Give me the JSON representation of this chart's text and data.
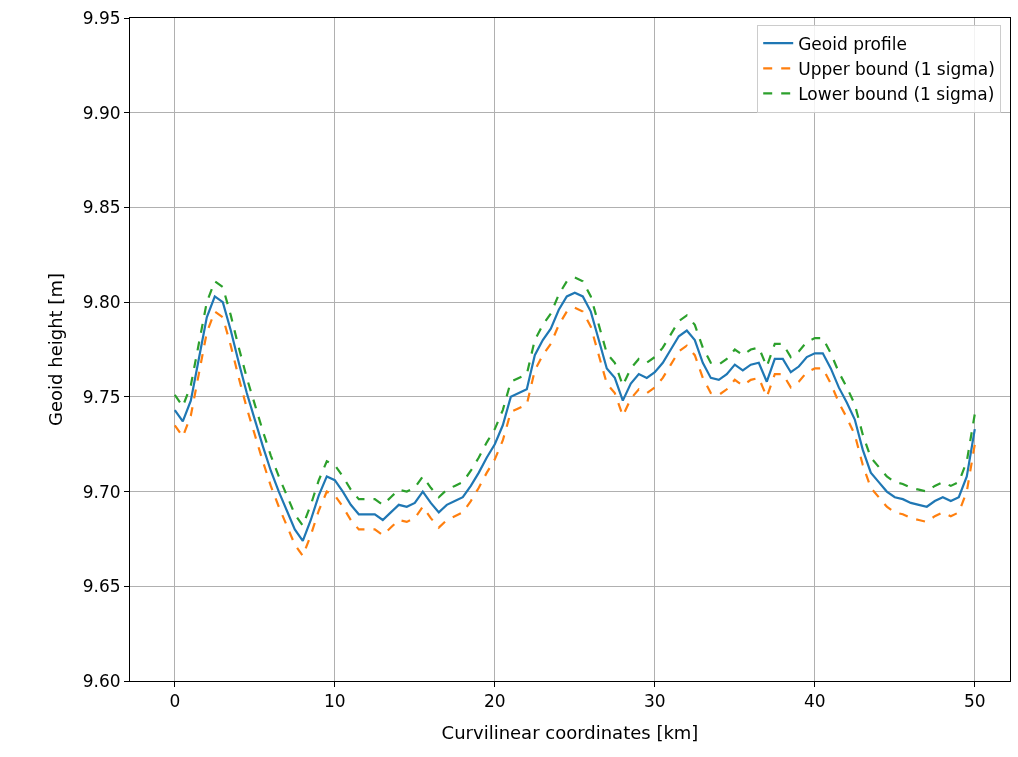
{
  "chart_data": {
    "type": "line",
    "xlabel": "Curvilinear coordinates [km]",
    "ylabel": "Geoid height [m]",
    "x": [
      0,
      0.5,
      1,
      1.5,
      2,
      2.5,
      3,
      3.5,
      4,
      4.5,
      5,
      5.5,
      6,
      6.5,
      7,
      7.5,
      8,
      8.5,
      9,
      9.5,
      10,
      10.5,
      11,
      11.5,
      12,
      12.5,
      13,
      13.5,
      14,
      14.5,
      15,
      15.5,
      16,
      16.5,
      17,
      17.5,
      18,
      18.5,
      19,
      19.5,
      20,
      20.5,
      21,
      21.5,
      22,
      22.5,
      23,
      23.5,
      24,
      24.5,
      25,
      25.5,
      26,
      26.5,
      27,
      27.5,
      28,
      28.5,
      29,
      29.5,
      30,
      30.5,
      31,
      31.5,
      32,
      32.5,
      33,
      33.5,
      34,
      34.5,
      35,
      35.5,
      36,
      36.5,
      37,
      37.5,
      38,
      38.5,
      39,
      39.5,
      40,
      40.5,
      41,
      41.5,
      42,
      42.5,
      43,
      43.5,
      44,
      44.5,
      45,
      45.5,
      46,
      46.5,
      47,
      47.5,
      48,
      48.5,
      49,
      49.5,
      50
    ],
    "series": [
      {
        "name": "Geoid profile",
        "color": "#1f77b4",
        "line_style": "solid",
        "values": [
          9.743,
          9.737,
          9.748,
          9.77,
          9.792,
          9.803,
          9.8,
          9.785,
          9.768,
          9.752,
          9.738,
          9.724,
          9.711,
          9.7,
          9.69,
          9.68,
          9.674,
          9.685,
          9.698,
          9.708,
          9.706,
          9.7,
          9.693,
          9.688,
          9.688,
          9.688,
          9.685,
          9.689,
          9.693,
          9.692,
          9.694,
          9.7,
          9.694,
          9.689,
          9.693,
          9.695,
          9.697,
          9.703,
          9.71,
          9.718,
          9.725,
          9.735,
          9.75,
          9.752,
          9.754,
          9.772,
          9.78,
          9.786,
          9.796,
          9.803,
          9.805,
          9.803,
          9.795,
          9.78,
          9.765,
          9.76,
          9.748,
          9.757,
          9.762,
          9.76,
          9.763,
          9.768,
          9.775,
          9.782,
          9.785,
          9.78,
          9.768,
          9.76,
          9.759,
          9.762,
          9.767,
          9.764,
          9.767,
          9.768,
          9.758,
          9.77,
          9.77,
          9.763,
          9.766,
          9.771,
          9.773,
          9.773,
          9.765,
          9.755,
          9.747,
          9.738,
          9.722,
          9.71,
          9.705,
          9.7,
          9.697,
          9.696,
          9.694,
          9.693,
          9.692,
          9.695,
          9.697,
          9.695,
          9.697,
          9.708,
          9.733
        ]
      },
      {
        "name": "Upper bound (1 sigma)",
        "color": "#ff7f0e",
        "line_style": "dashed",
        "values": [
          9.735,
          9.729,
          9.74,
          9.762,
          9.784,
          9.795,
          9.792,
          9.777,
          9.76,
          9.744,
          9.73,
          9.716,
          9.703,
          9.692,
          9.682,
          9.672,
          9.666,
          9.677,
          9.69,
          9.7,
          9.698,
          9.692,
          9.685,
          9.68,
          9.68,
          9.68,
          9.677,
          9.681,
          9.685,
          9.684,
          9.686,
          9.692,
          9.686,
          9.681,
          9.685,
          9.687,
          9.689,
          9.695,
          9.702,
          9.71,
          9.717,
          9.727,
          9.742,
          9.744,
          9.746,
          9.764,
          9.772,
          9.778,
          9.788,
          9.795,
          9.797,
          9.795,
          9.787,
          9.772,
          9.757,
          9.752,
          9.74,
          9.749,
          9.754,
          9.752,
          9.755,
          9.76,
          9.767,
          9.774,
          9.777,
          9.772,
          9.76,
          9.752,
          9.751,
          9.754,
          9.759,
          9.756,
          9.759,
          9.76,
          9.75,
          9.762,
          9.762,
          9.755,
          9.758,
          9.763,
          9.765,
          9.765,
          9.757,
          9.747,
          9.739,
          9.73,
          9.714,
          9.702,
          9.697,
          9.692,
          9.689,
          9.688,
          9.686,
          9.685,
          9.684,
          9.687,
          9.689,
          9.687,
          9.689,
          9.7,
          9.725
        ]
      },
      {
        "name": "Lower bound (1 sigma)",
        "color": "#2ca02c",
        "line_style": "dashed",
        "values": [
          9.751,
          9.745,
          9.756,
          9.778,
          9.8,
          9.811,
          9.808,
          9.793,
          9.776,
          9.76,
          9.746,
          9.732,
          9.719,
          9.708,
          9.698,
          9.688,
          9.682,
          9.693,
          9.706,
          9.716,
          9.714,
          9.708,
          9.701,
          9.696,
          9.696,
          9.696,
          9.693,
          9.697,
          9.701,
          9.7,
          9.702,
          9.708,
          9.702,
          9.697,
          9.701,
          9.703,
          9.705,
          9.711,
          9.718,
          9.726,
          9.733,
          9.743,
          9.758,
          9.76,
          9.762,
          9.78,
          9.788,
          9.794,
          9.804,
          9.811,
          9.813,
          9.811,
          9.803,
          9.788,
          9.773,
          9.768,
          9.756,
          9.765,
          9.77,
          9.768,
          9.771,
          9.776,
          9.783,
          9.79,
          9.793,
          9.788,
          9.776,
          9.768,
          9.767,
          9.77,
          9.775,
          9.772,
          9.775,
          9.776,
          9.766,
          9.778,
          9.778,
          9.771,
          9.774,
          9.779,
          9.781,
          9.781,
          9.773,
          9.763,
          9.755,
          9.746,
          9.73,
          9.718,
          9.713,
          9.708,
          9.705,
          9.704,
          9.702,
          9.701,
          9.7,
          9.703,
          9.705,
          9.703,
          9.705,
          9.716,
          9.741
        ]
      }
    ],
    "xlim": [
      -2.8,
      52.2
    ],
    "xticks": [
      0,
      10,
      20,
      30,
      40,
      50
    ],
    "ylim": [
      9.6,
      9.95
    ],
    "yticks": [
      {
        "value": 9.6,
        "label": "9.60"
      },
      {
        "value": 9.65,
        "label": "9.65"
      },
      {
        "value": 9.7,
        "label": "9.70"
      },
      {
        "value": 9.75,
        "label": "9.75"
      },
      {
        "value": 9.8,
        "label": "9.80"
      },
      {
        "value": 9.85,
        "label": "9.85"
      },
      {
        "value": 9.9,
        "label": "9.90"
      },
      {
        "value": 9.95,
        "label": "9.95"
      }
    ],
    "grid": true,
    "legend": "top right",
    "marker": "none"
  }
}
